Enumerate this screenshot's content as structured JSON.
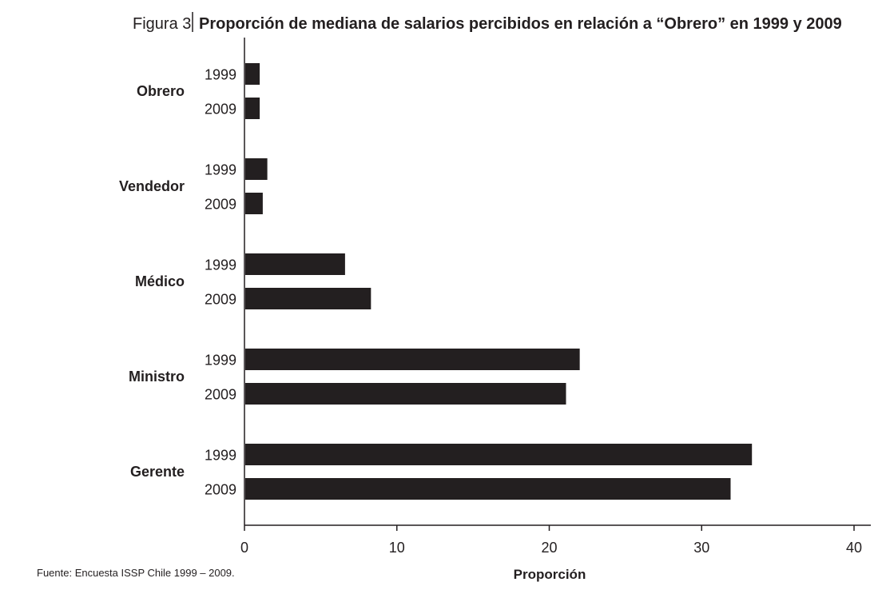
{
  "chart_data": {
    "type": "bar",
    "orientation": "horizontal",
    "title_prefix": "Figura 3",
    "title": "Proporción de mediana de salarios percibidos en relación a “Obrero” en 1999 y 2009",
    "xlabel": "Proporción",
    "ylabel": "",
    "xlim": [
      0,
      40
    ],
    "xticks": [
      0,
      10,
      20,
      30,
      40
    ],
    "categories": [
      "Obrero",
      "Vendedor",
      "Médico",
      "Ministro",
      "Gerente"
    ],
    "series": [
      {
        "name": "1999",
        "values": [
          1.0,
          1.5,
          6.6,
          22.0,
          33.3
        ]
      },
      {
        "name": "2009",
        "values": [
          1.0,
          1.2,
          8.3,
          21.1,
          31.9
        ]
      }
    ],
    "grid": false,
    "legend": "none",
    "colors": {
      "bar": "#231f20",
      "text": "#231f20"
    },
    "source": "Fuente: Encuesta ISSP Chile 1999 – 2009."
  }
}
